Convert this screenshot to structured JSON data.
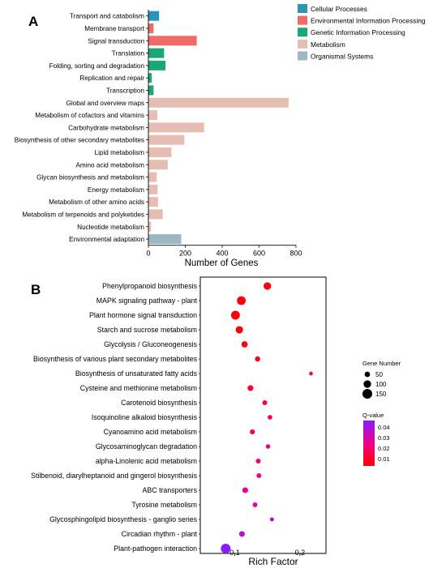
{
  "chart_data": [
    {
      "panel": "A",
      "type": "bar",
      "orientation": "horizontal",
      "xlabel": "Number of Genes",
      "ylabel": "",
      "xlim": [
        0,
        800
      ],
      "xticks": [
        0,
        200,
        400,
        600,
        800
      ],
      "grid": false,
      "legend_placement": "top-right",
      "legend": [
        {
          "name": "Cellular Processes",
          "color": "#2a95b8"
        },
        {
          "name": "Environmental Information Processing",
          "color": "#f06a6a"
        },
        {
          "name": "Genetic Information Processing",
          "color": "#1aa774"
        },
        {
          "name": "Metabolism",
          "color": "#e6bdb2"
        },
        {
          "name": "Organismal Systems",
          "color": "#9db8c1"
        }
      ],
      "bars": [
        {
          "label": "Transport and catabolism",
          "value": 58,
          "group": 0
        },
        {
          "label": "Membrane transport",
          "value": 28,
          "group": 1
        },
        {
          "label": "Signal transduction",
          "value": 262,
          "group": 1
        },
        {
          "label": "Translation",
          "value": 85,
          "group": 2
        },
        {
          "label": "Folding, sorting and degradation",
          "value": 93,
          "group": 2
        },
        {
          "label": "Replication and repair",
          "value": 18,
          "group": 2
        },
        {
          "label": "Transcription",
          "value": 28,
          "group": 2
        },
        {
          "label": "Global and overview maps",
          "value": 760,
          "group": 3
        },
        {
          "label": "Metabolism of cofactors and vitamins",
          "value": 48,
          "group": 3
        },
        {
          "label": "Carbohydrate metabolism",
          "value": 302,
          "group": 3
        },
        {
          "label": "Biosynthesis of other secondary metabolites",
          "value": 195,
          "group": 3
        },
        {
          "label": "Lipid metabolism",
          "value": 125,
          "group": 3
        },
        {
          "label": "Amino acid metabolism",
          "value": 105,
          "group": 3
        },
        {
          "label": "Glycan biosynthesis and metabolism",
          "value": 45,
          "group": 3
        },
        {
          "label": "Energy metabolism",
          "value": 50,
          "group": 3
        },
        {
          "label": "Metabolism of other amino acids",
          "value": 52,
          "group": 3
        },
        {
          "label": "Metabolism of terpenoids and polyketides",
          "value": 78,
          "group": 3
        },
        {
          "label": "Nucleotide metabolism",
          "value": 14,
          "group": 3
        },
        {
          "label": "Environmental adaptation",
          "value": 178,
          "group": 4
        }
      ]
    },
    {
      "panel": "B",
      "type": "scatter",
      "xlabel": "Rich Factor",
      "ylabel": "",
      "xlim": [
        0.047,
        0.24
      ],
      "xticks": [
        0.1,
        0.2
      ],
      "grid": false,
      "legend_placement": "right",
      "size_legend": {
        "title": "Gene Number",
        "values": [
          50,
          100,
          150
        ]
      },
      "color_legend": {
        "title": "Q-value",
        "ticks": [
          0.04,
          0.03,
          0.02,
          0.01
        ],
        "range": [
          0.003,
          0.046
        ],
        "colors": [
          "#ff0000",
          "#ee0088",
          "#8a1cff"
        ]
      },
      "points": [
        {
          "label": "Phenylpropanoid biosynthesis",
          "x": 0.15,
          "genes": 100,
          "q": 0.004
        },
        {
          "label": "MAPK signaling pathway - plant",
          "x": 0.11,
          "genes": 128,
          "q": 0.004
        },
        {
          "label": "Plant hormone signal transduction",
          "x": 0.101,
          "genes": 130,
          "q": 0.004
        },
        {
          "label": "Starch and sucrose metabolism",
          "x": 0.107,
          "genes": 96,
          "q": 0.004
        },
        {
          "label": "Glycolysis / Gluconeogenesis",
          "x": 0.115,
          "genes": 70,
          "q": 0.006
        },
        {
          "label": "Biosynthesis of various plant secondary metabolites",
          "x": 0.135,
          "genes": 45,
          "q": 0.008
        },
        {
          "label": "Biosynthesis of unsaturated fatty acids",
          "x": 0.217,
          "genes": 12,
          "q": 0.012
        },
        {
          "label": "Cysteine and methionine metabolism",
          "x": 0.124,
          "genes": 60,
          "q": 0.011
        },
        {
          "label": "Carotenoid biosynthesis",
          "x": 0.146,
          "genes": 38,
          "q": 0.014
        },
        {
          "label": "Isoquinoline alkaloid biosynthesis",
          "x": 0.154,
          "genes": 33,
          "q": 0.018
        },
        {
          "label": "Cyanoamino acid metabolism",
          "x": 0.127,
          "genes": 42,
          "q": 0.017
        },
        {
          "label": "Glycosaminoglycan degradation",
          "x": 0.151,
          "genes": 28,
          "q": 0.022
        },
        {
          "label": "alpha-Linolenic acid metabolism",
          "x": 0.136,
          "genes": 38,
          "q": 0.023
        },
        {
          "label": "Stilbenoid, diarylheptanoid and gingerol biosynthesis",
          "x": 0.137,
          "genes": 36,
          "q": 0.024
        },
        {
          "label": "ABC transporters",
          "x": 0.116,
          "genes": 58,
          "q": 0.026
        },
        {
          "label": "Tyrosine metabolism",
          "x": 0.131,
          "genes": 36,
          "q": 0.029
        },
        {
          "label": "Glycosphingolipid biosynthesis - ganglio series",
          "x": 0.157,
          "genes": 18,
          "q": 0.032
        },
        {
          "label": "Circadian rhythm - plant",
          "x": 0.111,
          "genes": 58,
          "q": 0.036
        },
        {
          "label": "Plant-pathogen interaction",
          "x": 0.086,
          "genes": 150,
          "q": 0.046
        }
      ]
    }
  ]
}
